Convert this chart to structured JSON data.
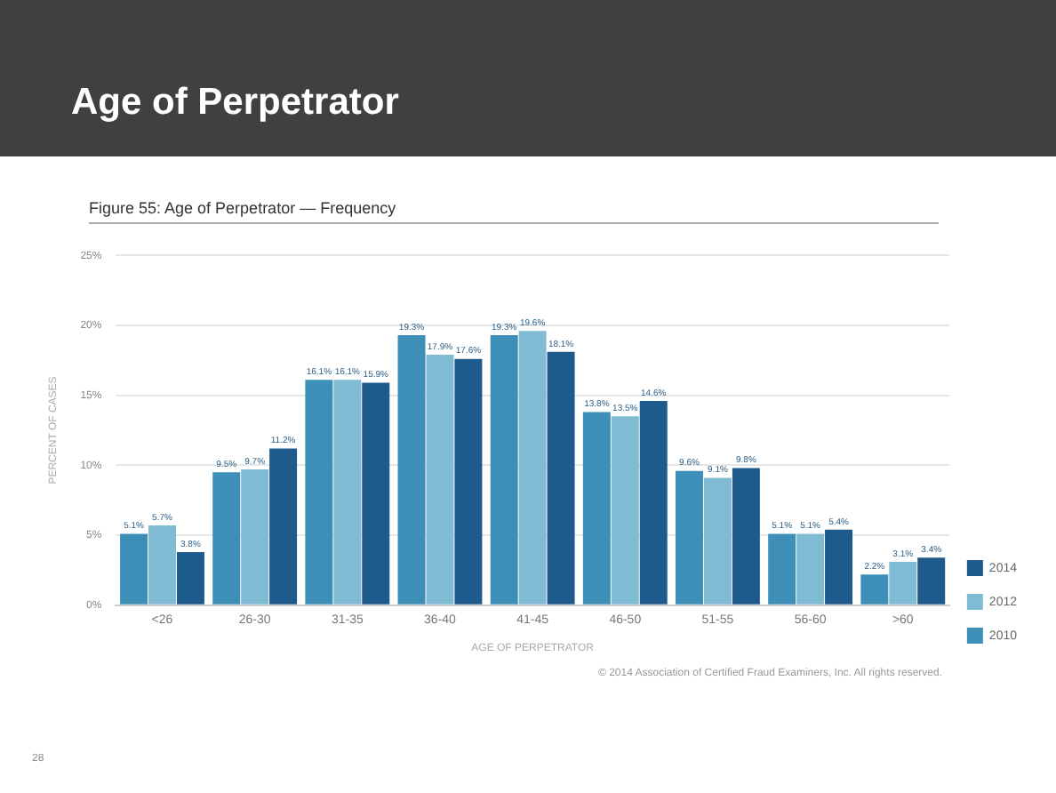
{
  "chart_data": {
    "type": "bar",
    "title": "Age of Perpetrator",
    "subtitle": "Figure 55: Age of Perpetrator — Frequency",
    "xlabel": "AGE OF PERPETRATOR",
    "ylabel": "PERCENT OF CASES",
    "categories": [
      "<26",
      "26-30",
      "31-35",
      "36-40",
      "41-45",
      "46-50",
      "51-55",
      "56-60",
      ">60"
    ],
    "series": [
      {
        "name": "2010",
        "color": "#3d8fb8",
        "values": [
          5.1,
          9.5,
          16.1,
          19.3,
          19.3,
          13.8,
          9.6,
          5.1,
          2.2
        ],
        "value_labels": [
          "5.1%",
          "9.5%",
          "16.1%",
          "19.3%",
          "19.3%",
          "13.8%",
          "9.6%",
          "5.1%",
          "2.2%"
        ]
      },
      {
        "name": "2012",
        "color": "#7fbcd4",
        "values": [
          5.7,
          9.7,
          16.1,
          17.9,
          19.6,
          13.5,
          9.1,
          5.1,
          3.1
        ],
        "value_labels": [
          "5.7%",
          "9.7%",
          "16.1%",
          "17.9%",
          "19.6%",
          "13.5%",
          "9.1%",
          "5.1%",
          "3.1%"
        ]
      },
      {
        "name": "2014",
        "color": "#1f5a8c",
        "values": [
          3.8,
          11.2,
          15.9,
          17.6,
          18.1,
          14.6,
          9.8,
          5.4,
          3.4
        ],
        "value_labels": [
          "3.8%",
          "11.2%",
          "15.9%",
          "17.6%",
          "18.1%",
          "14.6%",
          "9.8%",
          "5.4%",
          "3.4%"
        ]
      }
    ],
    "ylim": [
      0,
      25
    ],
    "yticks": [
      {
        "value": 0,
        "label": "0%"
      },
      {
        "value": 5,
        "label": "5%"
      },
      {
        "value": 10,
        "label": "10%"
      },
      {
        "value": 15,
        "label": "15%"
      },
      {
        "value": 20,
        "label": "20%"
      },
      {
        "value": 25,
        "label": "25%"
      }
    ],
    "grid": "y",
    "legend": "right",
    "annotations": [
      "© 2014 Association of Certified Fraud Examiners, Inc. All rights reserved.",
      "28"
    ]
  }
}
